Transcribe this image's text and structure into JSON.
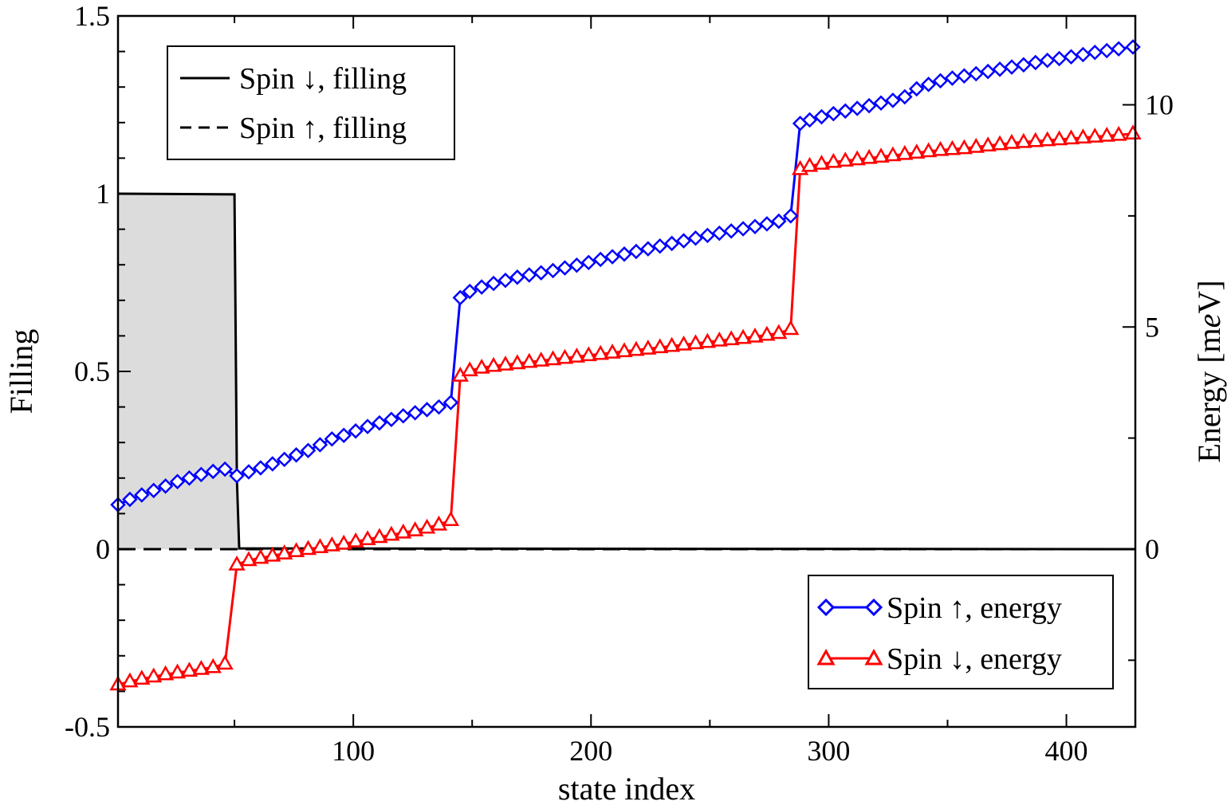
{
  "chart_data": {
    "type": "line",
    "title": "",
    "xlabel": "state index",
    "ylabel_left": "Filling",
    "ylabel_right_parts": [
      "Energy [m",
      "e",
      "V]"
    ],
    "xlim": [
      1,
      429
    ],
    "ylim_left": [
      -0.5,
      1.5
    ],
    "ylim_right": [
      -4,
      12
    ],
    "x_ticks": [
      100,
      200,
      300,
      400
    ],
    "x_tick_labels": [
      "100",
      "200",
      "300",
      "400"
    ],
    "y_left_ticks": [
      -0.5,
      0,
      0.5,
      1,
      1.5
    ],
    "y_left_tick_labels": [
      "-0.5",
      "0",
      "0.5",
      "1",
      "1.5"
    ],
    "y_right_ticks": [
      0,
      5,
      10
    ],
    "y_right_tick_labels": [
      "0",
      "5",
      "10"
    ],
    "legend_top": {
      "placement": "top-left",
      "entries": [
        {
          "label": "Spin ↓, filling",
          "style": "solid",
          "color": "#000000"
        },
        {
          "label": "Spin ↑, filling",
          "style": "dashed",
          "color": "#000000"
        }
      ]
    },
    "legend_bottom": {
      "placement": "bottom-right",
      "entries": [
        {
          "label": "Spin ↑, energy",
          "marker": "diamond",
          "color": "#0000ff"
        },
        {
          "label": "Spin ↓, energy",
          "marker": "triangle",
          "color": "#ff0000"
        }
      ]
    },
    "series": [
      {
        "name": "Spin ↓, filling",
        "axis": "left",
        "style": "solid",
        "color": "#000000",
        "fill": "#dcdcdc",
        "x": [
          1,
          50,
          51,
          52,
          429
        ],
        "y": [
          1.0,
          0.998,
          0.2,
          0.002,
          0.0
        ]
      },
      {
        "name": "Spin ↑, filling",
        "axis": "left",
        "style": "dashed",
        "color": "#000000",
        "x": [
          1,
          429
        ],
        "y": [
          0.0,
          0.0
        ]
      },
      {
        "name": "Spin ↑, energy",
        "axis": "right",
        "color": "#0000ff",
        "marker": "diamond",
        "x": [
          1,
          6,
          11,
          16,
          21,
          26,
          31,
          36,
          41,
          46,
          51,
          56,
          61,
          66,
          71,
          76,
          81,
          86,
          91,
          96,
          101,
          106,
          111,
          116,
          121,
          126,
          131,
          136,
          141,
          145,
          149,
          154,
          159,
          164,
          169,
          174,
          179,
          184,
          189,
          194,
          199,
          204,
          209,
          214,
          219,
          224,
          229,
          234,
          239,
          244,
          249,
          254,
          259,
          264,
          269,
          274,
          279,
          284,
          288,
          292,
          297,
          302,
          307,
          312,
          317,
          322,
          327,
          332,
          337,
          342,
          347,
          352,
          357,
          362,
          367,
          372,
          377,
          382,
          387,
          392,
          397,
          402,
          407,
          412,
          417,
          422,
          428
        ],
        "y": [
          1.0,
          1.12,
          1.22,
          1.32,
          1.42,
          1.52,
          1.6,
          1.68,
          1.75,
          1.8,
          1.65,
          1.74,
          1.83,
          1.92,
          2.02,
          2.12,
          2.22,
          2.35,
          2.48,
          2.56,
          2.66,
          2.76,
          2.84,
          2.92,
          3.0,
          3.07,
          3.14,
          3.2,
          3.3,
          5.66,
          5.8,
          5.9,
          5.98,
          6.05,
          6.12,
          6.17,
          6.22,
          6.27,
          6.33,
          6.39,
          6.45,
          6.52,
          6.58,
          6.64,
          6.7,
          6.76,
          6.82,
          6.88,
          6.94,
          7.0,
          7.06,
          7.11,
          7.16,
          7.21,
          7.26,
          7.32,
          7.38,
          7.5,
          9.58,
          9.66,
          9.73,
          9.8,
          9.86,
          9.92,
          9.98,
          10.04,
          10.1,
          10.18,
          10.36,
          10.46,
          10.54,
          10.6,
          10.65,
          10.7,
          10.75,
          10.8,
          10.85,
          10.9,
          10.95,
          11.0,
          11.04,
          11.08,
          11.13,
          11.18,
          11.22,
          11.26,
          11.3
        ]
      },
      {
        "name": "Spin ↓, energy",
        "axis": "right",
        "color": "#ff0000",
        "marker": "triangle",
        "x": [
          1,
          6,
          11,
          16,
          21,
          26,
          31,
          36,
          41,
          46,
          51,
          56,
          61,
          66,
          71,
          76,
          81,
          86,
          91,
          96,
          101,
          106,
          111,
          116,
          121,
          126,
          131,
          136,
          141,
          145,
          149,
          154,
          159,
          164,
          169,
          174,
          179,
          184,
          189,
          194,
          199,
          204,
          209,
          214,
          219,
          224,
          229,
          234,
          239,
          244,
          249,
          254,
          259,
          264,
          269,
          274,
          279,
          284,
          288,
          292,
          297,
          302,
          307,
          312,
          317,
          322,
          327,
          332,
          337,
          342,
          347,
          352,
          357,
          362,
          367,
          372,
          377,
          382,
          387,
          392,
          397,
          402,
          407,
          412,
          417,
          422,
          428
        ],
        "y": [
          -3.05,
          -2.98,
          -2.92,
          -2.87,
          -2.82,
          -2.78,
          -2.74,
          -2.7,
          -2.66,
          -2.58,
          -0.35,
          -0.25,
          -0.2,
          -0.15,
          -0.1,
          -0.05,
          0.0,
          0.04,
          0.08,
          0.12,
          0.17,
          0.22,
          0.27,
          0.32,
          0.37,
          0.42,
          0.48,
          0.55,
          0.65,
          3.9,
          4.02,
          4.08,
          4.12,
          4.15,
          4.18,
          4.21,
          4.24,
          4.27,
          4.3,
          4.33,
          4.36,
          4.39,
          4.42,
          4.45,
          4.48,
          4.51,
          4.54,
          4.57,
          4.6,
          4.63,
          4.66,
          4.69,
          4.72,
          4.75,
          4.78,
          4.82,
          4.86,
          4.95,
          8.55,
          8.62,
          8.67,
          8.71,
          8.74,
          8.77,
          8.8,
          8.83,
          8.86,
          8.89,
          8.92,
          8.95,
          8.98,
          9.0,
          9.02,
          9.05,
          9.08,
          9.11,
          9.14,
          9.16,
          9.18,
          9.2,
          9.22,
          9.24,
          9.26,
          9.28,
          9.3,
          9.32,
          9.35
        ]
      }
    ]
  }
}
